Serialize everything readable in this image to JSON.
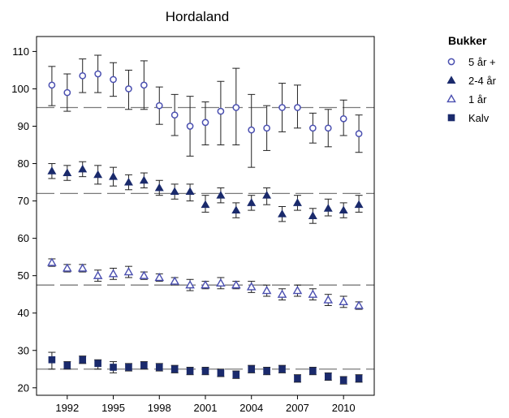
{
  "chart_data": {
    "type": "scatter",
    "title": "Hordaland",
    "xlabel": "",
    "ylabel": "",
    "xlim": [
      1990.0,
      2012.0
    ],
    "ylim": [
      18,
      114
    ],
    "x_ticks": [
      1992,
      1995,
      1998,
      2001,
      2004,
      2007,
      2010
    ],
    "y_ticks": [
      20,
      30,
      40,
      50,
      60,
      70,
      80,
      90,
      100,
      110
    ],
    "grid": false,
    "legend": {
      "title": "Bukker",
      "position": "right-top"
    },
    "x": [
      1991,
      1992,
      1993,
      1994,
      1995,
      1996,
      1997,
      1998,
      1999,
      2000,
      2001,
      2002,
      2003,
      2004,
      2005,
      2006,
      2007,
      2008,
      2009,
      2010,
      2011
    ],
    "series": [
      {
        "name": "5 år +",
        "marker": "open-circle",
        "color": "#4a4fb0",
        "values": [
          101,
          99,
          103.5,
          104,
          102.5,
          100,
          101,
          95.5,
          93,
          90,
          91,
          94,
          95,
          89,
          89.5,
          95,
          95,
          89.5,
          89.5,
          92,
          88
        ],
        "err_low": [
          95.5,
          94,
          99,
          99,
          98,
          94.5,
          94.5,
          90.5,
          87.5,
          82,
          85,
          85,
          85,
          79,
          83.5,
          88.5,
          89.5,
          85.5,
          84.5,
          87.5,
          83
        ],
        "err_high": [
          106,
          104,
          108,
          109,
          107,
          105,
          107.5,
          100.5,
          98.5,
          98,
          96.5,
          102,
          105.5,
          98.5,
          95.5,
          101.5,
          101,
          93.5,
          94.5,
          97,
          93
        ],
        "reference": 95
      },
      {
        "name": "2-4 år",
        "marker": "filled-triangle",
        "color": "#1a2a6c",
        "values": [
          78,
          77.5,
          78.5,
          77,
          76.5,
          75,
          75.5,
          73.5,
          72.5,
          72.5,
          69,
          71.5,
          67.5,
          69.5,
          71.5,
          66.5,
          69.5,
          66,
          68,
          67.5,
          69
        ],
        "err_low": [
          76,
          75.5,
          76.5,
          74.5,
          74,
          73,
          73.5,
          71.5,
          70.5,
          70,
          67,
          69.5,
          65.5,
          67.5,
          69,
          64.5,
          67.5,
          64,
          66,
          65.5,
          67
        ],
        "err_high": [
          80,
          79.5,
          80.5,
          79.5,
          79,
          77,
          77.5,
          75.5,
          74.5,
          74.5,
          71.5,
          73.5,
          69.5,
          71.5,
          73.5,
          68.5,
          71.5,
          68,
          70.5,
          69.5,
          71.5
        ],
        "reference": 72
      },
      {
        "name": "1 år",
        "marker": "open-triangle",
        "color": "#4a4fb0",
        "values": [
          53.5,
          52,
          52,
          50,
          50.5,
          51,
          50,
          49.5,
          48.5,
          47.5,
          47.5,
          48,
          47.5,
          47,
          46,
          45,
          46,
          45,
          43.5,
          43,
          42
        ],
        "err_low": [
          52.5,
          51,
          51,
          48.5,
          49,
          49.5,
          49,
          48.5,
          47.5,
          46,
          46.5,
          46.5,
          46.5,
          45.5,
          44.5,
          43.5,
          44.5,
          43.5,
          42,
          41.5,
          41
        ],
        "err_high": [
          54.5,
          53,
          53,
          51.5,
          52,
          52.5,
          51,
          50.5,
          49.5,
          49,
          48.5,
          49.5,
          48.5,
          48.5,
          47.5,
          46.5,
          47.5,
          46.5,
          45,
          44.5,
          43
        ],
        "reference": 47.5
      },
      {
        "name": "Kalv",
        "marker": "filled-square",
        "color": "#1a2a6c",
        "values": [
          27.5,
          26,
          27.5,
          26.5,
          25.5,
          25.5,
          26,
          25.5,
          25,
          24.5,
          24.5,
          24,
          23.5,
          25,
          24.5,
          25,
          22.5,
          24.5,
          23,
          22,
          22.5
        ],
        "err_low": [
          25,
          25,
          26.5,
          25,
          24,
          24.5,
          25,
          24.5,
          24,
          23.5,
          23.5,
          23,
          22.5,
          24,
          23.5,
          24,
          21.5,
          23.5,
          22,
          21,
          21.5
        ],
        "err_high": [
          29.5,
          27,
          28.5,
          27.5,
          27,
          26.5,
          27,
          26.5,
          26,
          25.5,
          25.5,
          25,
          24.5,
          26,
          25.5,
          26,
          23.5,
          25.5,
          24,
          23,
          23.5
        ],
        "reference": 25
      }
    ]
  }
}
